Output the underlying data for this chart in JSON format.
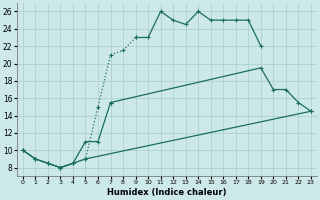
{
  "xlabel": "Humidex (Indice chaleur)",
  "background_color": "#cce8e8",
  "grid_color": "#aacccc",
  "line_color": "#1a6e60",
  "xlim": [
    -0.5,
    23.5
  ],
  "ylim": [
    7,
    27
  ],
  "xticks": [
    0,
    1,
    2,
    3,
    4,
    5,
    6,
    7,
    8,
    9,
    10,
    11,
    12,
    13,
    14,
    15,
    16,
    17,
    18,
    19,
    20,
    21,
    22,
    23
  ],
  "yticks": [
    8,
    10,
    12,
    14,
    16,
    18,
    20,
    22,
    24,
    26
  ],
  "line1_dot_x": [
    0,
    1,
    2,
    3,
    4,
    5,
    6,
    7,
    8,
    9
  ],
  "line1_dot_y": [
    10,
    9,
    8.5,
    8,
    8.5,
    9,
    15,
    21,
    21.5,
    23
  ],
  "line1_sol_x": [
    9,
    10,
    11,
    12,
    13,
    14,
    15,
    16,
    17,
    18,
    19
  ],
  "line1_sol_y": [
    23,
    23,
    26,
    25,
    24.5,
    26,
    25,
    25,
    25,
    25,
    22
  ],
  "line2_x": [
    0,
    1,
    2,
    3,
    4,
    5,
    6,
    7,
    19,
    20,
    21,
    22,
    23
  ],
  "line2_y": [
    10,
    9,
    8.5,
    8,
    8.5,
    11,
    11,
    15.5,
    19.5,
    17,
    17,
    15.5,
    14.5
  ],
  "line3_x": [
    0,
    1,
    2,
    3,
    4,
    5,
    23
  ],
  "line3_y": [
    10,
    9,
    8.5,
    8,
    8.5,
    9,
    14.5
  ]
}
